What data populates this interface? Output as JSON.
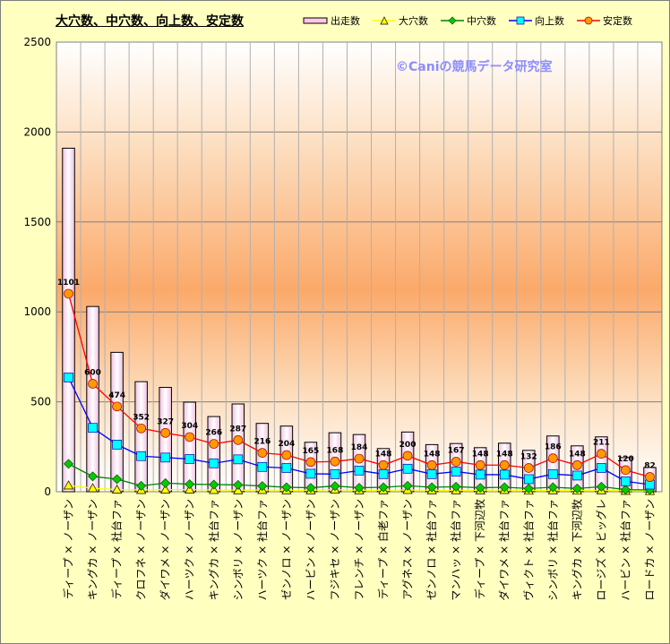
{
  "chart_data": {
    "type": "bar",
    "title": "大穴数、中穴数、向上数、安定数",
    "watermark": "©Caniの競馬データ研究室",
    "ylim": [
      0,
      2500
    ],
    "yticks": [
      0,
      500,
      1000,
      1500,
      2000,
      2500
    ],
    "grid": true,
    "legend_position": "top-right",
    "categories": [
      "ディープ × ノーザン",
      "キングカ × ノーザン",
      "ディープ × 社台ファ",
      "クロフネ × ノーザン",
      "ダイワメ × ノーザン",
      "ハーツク × ノーザン",
      "キングカ × 社台ファ",
      "シンボリ × ノーザン",
      "ハーツク × 社台ファ",
      "ゼンノロ × ノーザン",
      "ハービン × ノーザン",
      "フジキセ × ノーザン",
      "フレンチ × ノーザン",
      "ディープ × 白老ファ",
      "アグネス × ノーザン",
      "ゼンノロ × 社台ファ",
      "マンハッ × 社台ファ",
      "ディープ × 下河辺牧",
      "ダイワメ × 社台ファ",
      "ヴィクト × 社台ファ",
      "シンボリ × 社台ファ",
      "キングカ × 下河辺牧",
      "ロージズ × ビッグレ",
      "ハービン × 社台ファ",
      "ロードカ × ノーザン"
    ],
    "series": [
      {
        "name": "出走数",
        "kind": "bar",
        "color": "#ffc8e6",
        "values": [
          1910,
          1030,
          775,
          612,
          580,
          498,
          418,
          488,
          380,
          365,
          275,
          328,
          318,
          240,
          332,
          262,
          268,
          245,
          270,
          230,
          310,
          255,
          305,
          190,
          135
        ]
      },
      {
        "name": "大穴数",
        "kind": "line",
        "marker": "triangle",
        "color": "#ffff00",
        "values": [
          35,
          20,
          12,
          10,
          12,
          12,
          10,
          8,
          10,
          8,
          8,
          12,
          8,
          8,
          10,
          8,
          8,
          8,
          10,
          6,
          8,
          6,
          8,
          5,
          4
        ]
      },
      {
        "name": "中穴数",
        "kind": "line",
        "marker": "diamond",
        "color": "#008000",
        "values": [
          155,
          85,
          70,
          33,
          48,
          42,
          40,
          38,
          32,
          25,
          22,
          32,
          22,
          25,
          33,
          25,
          28,
          22,
          25,
          18,
          25,
          18,
          28,
          12,
          10
        ]
      },
      {
        "name": "向上数",
        "kind": "line",
        "marker": "square",
        "color": "#0000ff",
        "values": [
          635,
          355,
          262,
          198,
          190,
          182,
          158,
          180,
          138,
          132,
          100,
          98,
          118,
          98,
          128,
          98,
          112,
          95,
          95,
          70,
          98,
          90,
          132,
          58,
          40
        ]
      },
      {
        "name": "安定数",
        "kind": "line",
        "marker": "circle",
        "color": "#ff0000",
        "values": [
          1101,
          600,
          474,
          352,
          327,
          304,
          266,
          287,
          216,
          204,
          165,
          168,
          184,
          148,
          200,
          148,
          167,
          148,
          148,
          132,
          186,
          148,
          211,
          120,
          82
        ]
      }
    ]
  }
}
